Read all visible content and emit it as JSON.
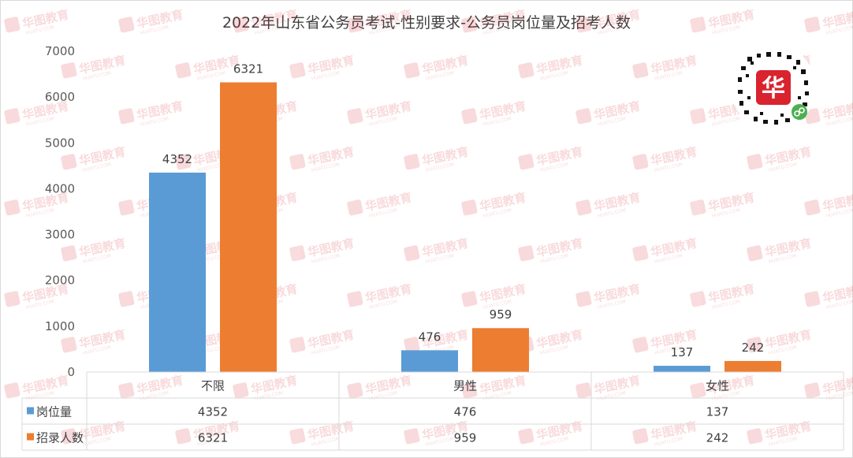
{
  "chart_data": {
    "type": "bar",
    "title": "2022年山东省公务员考试-性别要求-公务员岗位量及招考人数",
    "categories": [
      "不限",
      "男性",
      "女性"
    ],
    "series": [
      {
        "name": "岗位量",
        "values": [
          4352,
          476,
          137
        ],
        "color": "#5b9bd5"
      },
      {
        "name": "招录人数",
        "values": [
          6321,
          959,
          242
        ],
        "color": "#ed7d31"
      }
    ],
    "ylim": [
      0,
      7000
    ],
    "yticks": [
      0,
      1000,
      2000,
      3000,
      4000,
      5000,
      6000,
      7000
    ],
    "grid": false,
    "legend": "data-table"
  },
  "watermark": {
    "brand": "华图教育",
    "sub": "HUATU.COM"
  },
  "qr_icon": "qr-code-icon"
}
